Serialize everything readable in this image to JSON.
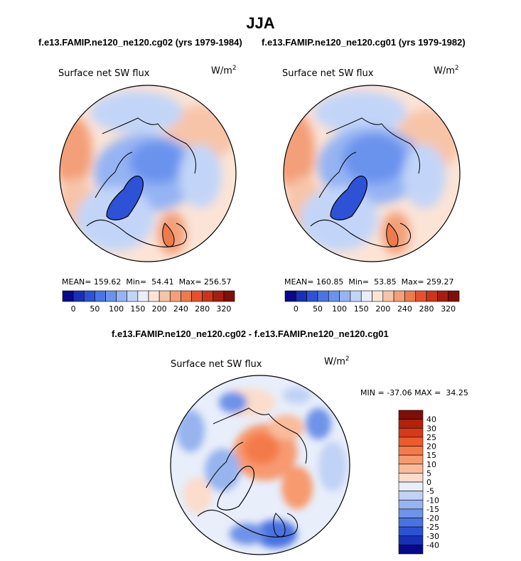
{
  "season": "JJA",
  "panels": [
    {
      "case": "f.e13.FAMIP.ne120_ne120.cg02 (yrs 1979-1984)",
      "variable": "Surface net SW flux",
      "units_base": "W/m",
      "units_exp": "2",
      "stats": "MEAN= 159.62  Min=  54.41  Max= 256.57",
      "colorbar_labels": [
        "0",
        "50",
        "100",
        "150",
        "200",
        "240",
        "280",
        "320"
      ],
      "colors": [
        "#08088c",
        "#1a2fb8",
        "#2e52d6",
        "#4a74e6",
        "#6b93ee",
        "#95b4f3",
        "#c2d5f8",
        "#e8eff9",
        "#fbe4d6",
        "#f8c4a8",
        "#f39f78",
        "#ee7a4e",
        "#e5532c",
        "#cc3517",
        "#a61f0e",
        "#7f0f06"
      ]
    },
    {
      "case": "f.e13.FAMIP.ne120_ne120.cg01 (yrs 1979-1982)",
      "variable": "Surface net SW flux",
      "units_base": "W/m",
      "units_exp": "2",
      "stats": "MEAN= 160.85  Min=  53.85  Max= 259.27",
      "colorbar_labels": [
        "0",
        "50",
        "100",
        "150",
        "200",
        "240",
        "280",
        "320"
      ],
      "colors": [
        "#08088c",
        "#1a2fb8",
        "#2e52d6",
        "#4a74e6",
        "#6b93ee",
        "#95b4f3",
        "#c2d5f8",
        "#e8eff9",
        "#fbe4d6",
        "#f8c4a8",
        "#f39f78",
        "#ee7a4e",
        "#e5532c",
        "#cc3517",
        "#a61f0e",
        "#7f0f06"
      ]
    }
  ],
  "diff": {
    "title": "f.e13.FAMIP.ne120_ne120.cg02 - f.e13.FAMIP.ne120_ne120.cg01",
    "variable": "Surface net SW flux",
    "units_base": "W/m",
    "units_exp": "2",
    "stats": "MIN = -37.06 MAX =  34.25",
    "colorbar_labels": [
      "40",
      "30",
      "25",
      "20",
      "15",
      "10",
      "5",
      "0",
      "-5",
      "-10",
      "-15",
      "-20",
      "-25",
      "-30",
      "-40"
    ],
    "colors": [
      "#7f0f06",
      "#b0220e",
      "#d63a1a",
      "#ec5b2c",
      "#f47a4a",
      "#f79a70",
      "#f9bb9a",
      "#fcdccb",
      "#e8eefa",
      "#c0d2f5",
      "#97b4ef",
      "#6e93e8",
      "#4a72e0",
      "#2c52d4",
      "#1630b8",
      "#08088c"
    ]
  },
  "chart_data": [
    {
      "type": "heatmap",
      "title": "Surface net SW flux",
      "subtitle": "f.e13.FAMIP.ne120_ne120.cg02 (yrs 1979-1984)",
      "season": "JJA",
      "units": "W/m^2",
      "levels": [
        0,
        50,
        100,
        150,
        200,
        240,
        280,
        320
      ],
      "stats": {
        "mean": 159.62,
        "min": 54.41,
        "max": 256.57
      }
    },
    {
      "type": "heatmap",
      "title": "Surface net SW flux",
      "subtitle": "f.e13.FAMIP.ne120_ne120.cg01 (yrs 1979-1982)",
      "season": "JJA",
      "units": "W/m^2",
      "levels": [
        0,
        50,
        100,
        150,
        200,
        240,
        280,
        320
      ],
      "stats": {
        "mean": 160.85,
        "min": 53.85,
        "max": 259.27
      }
    },
    {
      "type": "heatmap",
      "title": "Surface net SW flux",
      "subtitle": "f.e13.FAMIP.ne120_ne120.cg02 - f.e13.FAMIP.ne120_ne120.cg01",
      "units": "W/m^2",
      "levels": [
        -40,
        -30,
        -25,
        -20,
        -15,
        -10,
        -5,
        0,
        5,
        10,
        15,
        20,
        25,
        30,
        40
      ],
      "stats": {
        "min": -37.06,
        "max": 34.25
      }
    }
  ]
}
